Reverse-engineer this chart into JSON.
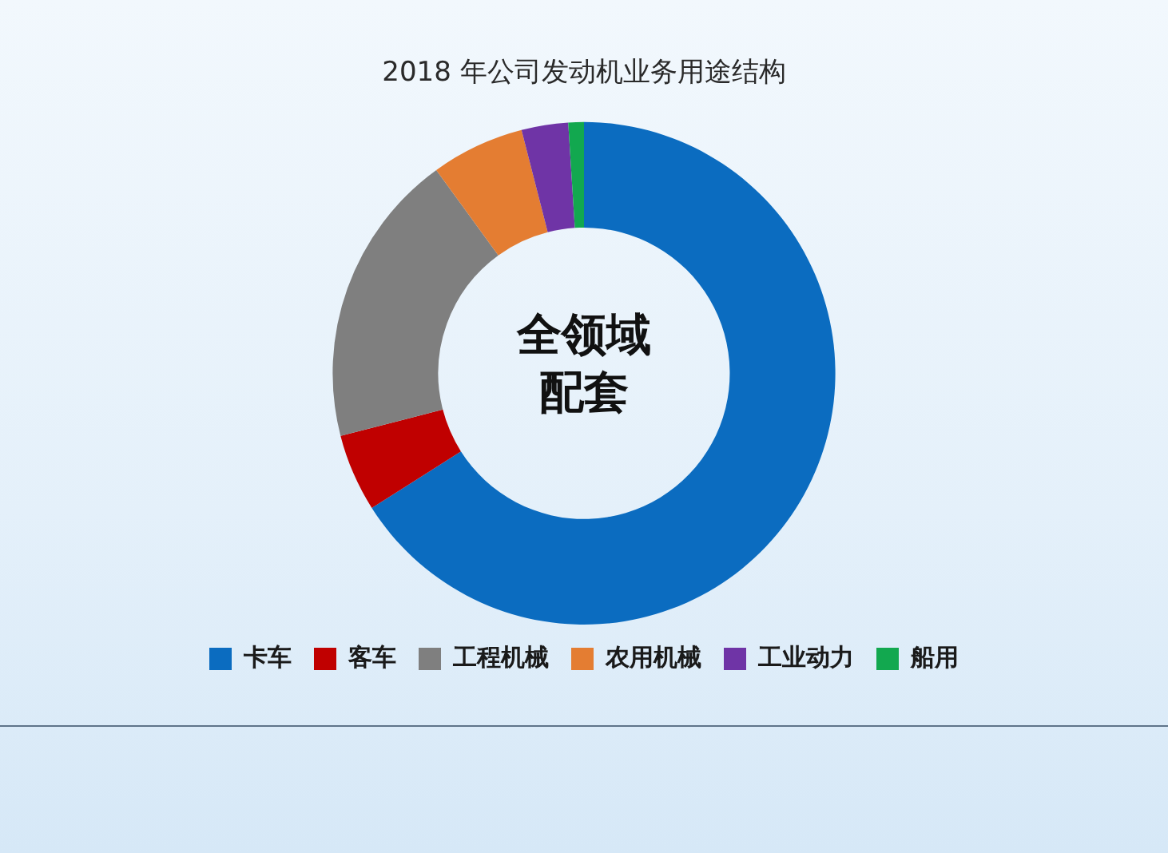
{
  "chart_data": {
    "type": "donut",
    "title": "2018 年公司发动机业务用途结构",
    "categories": [
      "卡车",
      "客车",
      "工程机械",
      "农用机械",
      "工业动力",
      "船用"
    ],
    "values": [
      66,
      5,
      19,
      6,
      3,
      1
    ],
    "colors": [
      "#0b6cc0",
      "#c00000",
      "#7f7f7f",
      "#e47d32",
      "#6f34a6",
      "#12a84f"
    ],
    "legend": "bottom",
    "annotations": [
      "全领域配套"
    ]
  }
}
